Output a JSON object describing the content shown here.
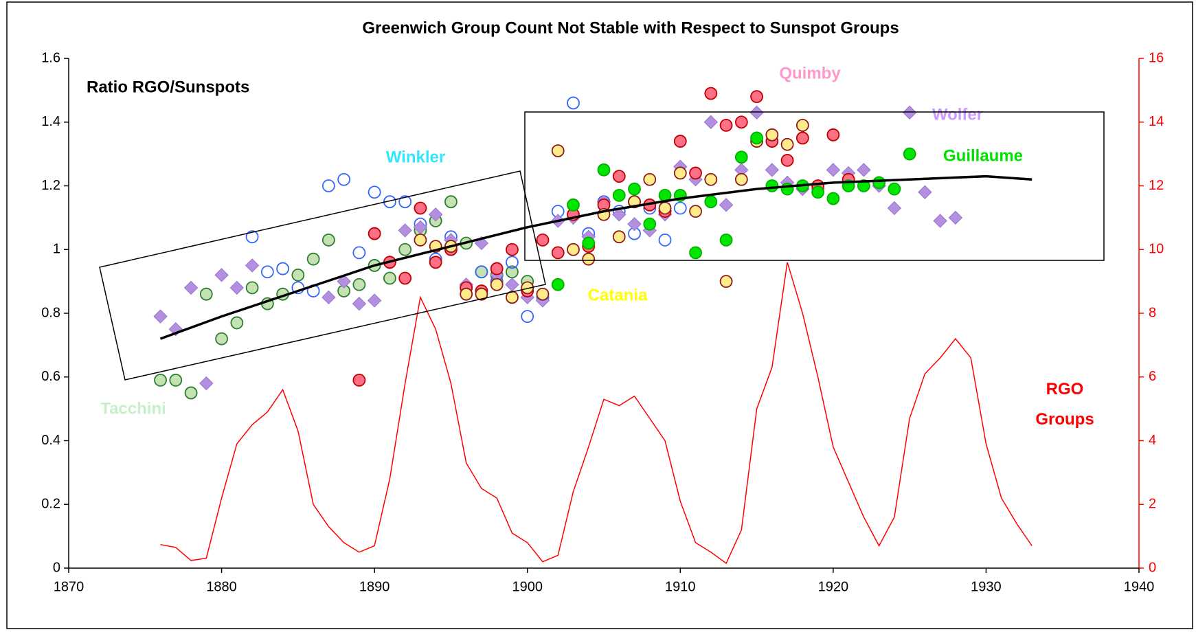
{
  "chart_data": {
    "type": "scatter",
    "title": "Greenwich Group Count Not Stable with Respect to Sunspot Groups",
    "ylabel": "Ratio RGO/Sunspots",
    "xlim": [
      1870,
      1940
    ],
    "xticks": [
      1870,
      1880,
      1890,
      1900,
      1910,
      1920,
      1930,
      1940
    ],
    "ylim": [
      0,
      1.6
    ],
    "yticks": [
      0,
      0.2,
      0.4,
      0.6,
      0.8,
      1,
      1.2,
      1.4,
      1.6
    ],
    "y2lim": [
      0,
      16
    ],
    "y2ticks": [
      0,
      2,
      4,
      6,
      8,
      10,
      12,
      14,
      16
    ],
    "y2color": "#ff0000",
    "grid": false,
    "series": [
      {
        "name": "RGO Groups",
        "axis": "y2",
        "marker": "line",
        "color": "#ff0000",
        "x": [
          1876,
          1877,
          1878,
          1879,
          1880,
          1881,
          1882,
          1883,
          1884,
          1885,
          1886,
          1887,
          1888,
          1889,
          1890,
          1891,
          1892,
          1893,
          1894,
          1895,
          1896,
          1897,
          1898,
          1899,
          1900,
          1901,
          1902,
          1903,
          1904,
          1905,
          1906,
          1907,
          1908,
          1909,
          1910,
          1911,
          1912,
          1913,
          1914,
          1915,
          1916,
          1917,
          1918,
          1919,
          1920,
          1921,
          1922,
          1923,
          1924,
          1925,
          1926,
          1927,
          1928,
          1929,
          1930,
          1931,
          1932,
          1933
        ],
        "values": [
          0.74,
          0.65,
          0.24,
          0.31,
          2.2,
          3.9,
          4.5,
          4.9,
          5.6,
          4.3,
          2.0,
          1.3,
          0.8,
          0.5,
          0.7,
          2.8,
          5.8,
          8.5,
          7.5,
          5.8,
          3.3,
          2.5,
          2.2,
          1.1,
          0.8,
          0.2,
          0.4,
          2.4,
          3.8,
          5.3,
          5.1,
          5.4,
          4.7,
          4.0,
          2.1,
          0.8,
          0.5,
          0.15,
          1.2,
          5.0,
          6.3,
          9.6,
          8.0,
          6.0,
          3.8,
          2.7,
          1.6,
          0.7,
          1.6,
          4.7,
          6.1,
          6.6,
          7.2,
          6.6,
          3.9,
          2.2,
          1.4,
          0.7
        ]
      },
      {
        "name": "Tacchini",
        "marker": "circle",
        "color": "#c4e2b2",
        "edgecolor": "#2e7d32",
        "label_color": "#c8f0c8",
        "x": [
          1876,
          1877,
          1878,
          1879,
          1880,
          1881,
          1882,
          1883,
          1884,
          1885,
          1886,
          1887,
          1888,
          1889,
          1890,
          1891,
          1892,
          1893,
          1894,
          1895,
          1896,
          1897,
          1898,
          1899,
          1900
        ],
        "values": [
          0.59,
          0.59,
          0.55,
          0.86,
          0.72,
          0.77,
          0.88,
          0.83,
          0.86,
          0.92,
          0.97,
          1.03,
          0.87,
          0.89,
          0.95,
          0.91,
          1.0,
          1.06,
          1.09,
          1.15,
          1.02,
          0.93,
          0.92,
          0.93,
          0.9
        ]
      },
      {
        "name": "Winkler",
        "marker": "circle",
        "color": "none",
        "edgecolor": "#3366ff",
        "label_color": "#33e6ff",
        "x": [
          1882,
          1883,
          1884,
          1885,
          1886,
          1887,
          1888,
          1889,
          1890,
          1891,
          1892,
          1893,
          1894,
          1895,
          1896,
          1897,
          1898,
          1899,
          1900,
          1901,
          1902,
          1903,
          1904,
          1905,
          1906,
          1907,
          1908,
          1909,
          1910
        ],
        "values": [
          1.04,
          0.93,
          0.94,
          0.88,
          0.87,
          1.2,
          1.22,
          0.99,
          1.18,
          1.15,
          1.15,
          1.08,
          0.97,
          1.04,
          0.88,
          0.93,
          0.9,
          0.96,
          0.79,
          0.85,
          1.12,
          1.46,
          1.05,
          1.15,
          1.12,
          1.05,
          1.13,
          1.03,
          1.13
        ]
      },
      {
        "name": "Wolfer",
        "marker": "diamond",
        "color": "#b38fe0",
        "edgecolor": "#9a74cf",
        "label_color": "#cc99ff",
        "x": [
          1876,
          1877,
          1878,
          1879,
          1880,
          1881,
          1882,
          1887,
          1888,
          1889,
          1890,
          1891,
          1892,
          1893,
          1894,
          1895,
          1896,
          1897,
          1898,
          1899,
          1900,
          1901,
          1902,
          1903,
          1904,
          1905,
          1906,
          1907,
          1908,
          1909,
          1910,
          1911,
          1912,
          1913,
          1914,
          1915,
          1916,
          1917,
          1918,
          1919,
          1920,
          1921,
          1922,
          1923,
          1924,
          1925,
          1926,
          1927,
          1928
        ],
        "values": [
          0.79,
          0.75,
          0.88,
          0.58,
          0.92,
          0.88,
          0.95,
          0.85,
          0.9,
          0.83,
          0.84,
          0.96,
          1.06,
          1.07,
          1.11,
          1.03,
          0.89,
          1.02,
          0.92,
          0.89,
          0.85,
          0.84,
          1.09,
          1.1,
          1.04,
          1.15,
          1.11,
          1.08,
          1.06,
          1.11,
          1.26,
          1.22,
          1.4,
          1.14,
          1.25,
          1.43,
          1.25,
          1.21,
          1.19,
          1.19,
          1.25,
          1.24,
          1.25,
          1.2,
          1.13,
          1.43,
          1.18,
          1.09,
          1.1
        ]
      },
      {
        "name": "Quimby",
        "marker": "circle",
        "color": "#ff6f86",
        "edgecolor": "#c00000",
        "label_color": "#ff99cc",
        "x": [
          1889,
          1890,
          1891,
          1892,
          1893,
          1894,
          1895,
          1896,
          1897,
          1898,
          1899,
          1900,
          1901,
          1902,
          1903,
          1904,
          1905,
          1906,
          1907,
          1908,
          1909,
          1910,
          1911,
          1912,
          1913,
          1914,
          1915,
          1916,
          1917,
          1918,
          1919,
          1920,
          1921
        ],
        "values": [
          0.59,
          1.05,
          0.96,
          0.91,
          1.13,
          0.96,
          1.0,
          0.88,
          0.87,
          0.94,
          1.0,
          0.87,
          1.03,
          0.99,
          1.11,
          1.01,
          1.14,
          1.23,
          1.15,
          1.14,
          1.12,
          1.34,
          1.24,
          1.49,
          1.39,
          1.4,
          1.48,
          1.34,
          1.28,
          1.35,
          1.2,
          1.36,
          1.22
        ]
      },
      {
        "name": "Catania",
        "marker": "circle",
        "color": "#ffeb8a",
        "edgecolor": "#8b1a1a",
        "label_color": "#ffff00",
        "x": [
          1893,
          1894,
          1895,
          1896,
          1897,
          1898,
          1899,
          1900,
          1901,
          1902,
          1903,
          1904,
          1905,
          1906,
          1907,
          1908,
          1909,
          1910,
          1911,
          1912,
          1913,
          1914,
          1915,
          1916,
          1917,
          1918
        ],
        "values": [
          1.03,
          1.01,
          1.01,
          0.86,
          0.86,
          0.89,
          0.85,
          0.88,
          0.86,
          1.31,
          1.0,
          0.97,
          1.11,
          1.04,
          1.15,
          1.22,
          1.13,
          1.24,
          1.12,
          1.22,
          0.9,
          1.22,
          1.34,
          1.36,
          1.33,
          1.39
        ]
      },
      {
        "name": "Guillaume",
        "marker": "circle",
        "color": "#00e600",
        "edgecolor": "#00b000",
        "label_color": "#00e000",
        "x": [
          1902,
          1903,
          1904,
          1905,
          1906,
          1907,
          1908,
          1909,
          1910,
          1911,
          1912,
          1913,
          1914,
          1915,
          1916,
          1917,
          1918,
          1919,
          1920,
          1921,
          1922,
          1923,
          1924,
          1925
        ],
        "values": [
          0.89,
          1.14,
          1.02,
          1.25,
          1.17,
          1.19,
          1.08,
          1.17,
          1.17,
          0.99,
          1.15,
          1.03,
          1.29,
          1.35,
          1.2,
          1.19,
          1.2,
          1.18,
          1.16,
          1.2,
          1.2,
          1.21,
          1.19,
          1.3
        ]
      }
    ],
    "trend": {
      "color": "#000000",
      "x": [
        1876,
        1880,
        1885,
        1890,
        1895,
        1900,
        1905,
        1910,
        1915,
        1920,
        1925,
        1930,
        1933
      ],
      "values": [
        0.72,
        0.79,
        0.87,
        0.95,
        1.01,
        1.07,
        1.12,
        1.16,
        1.19,
        1.21,
        1.22,
        1.23,
        1.22
      ]
    }
  }
}
